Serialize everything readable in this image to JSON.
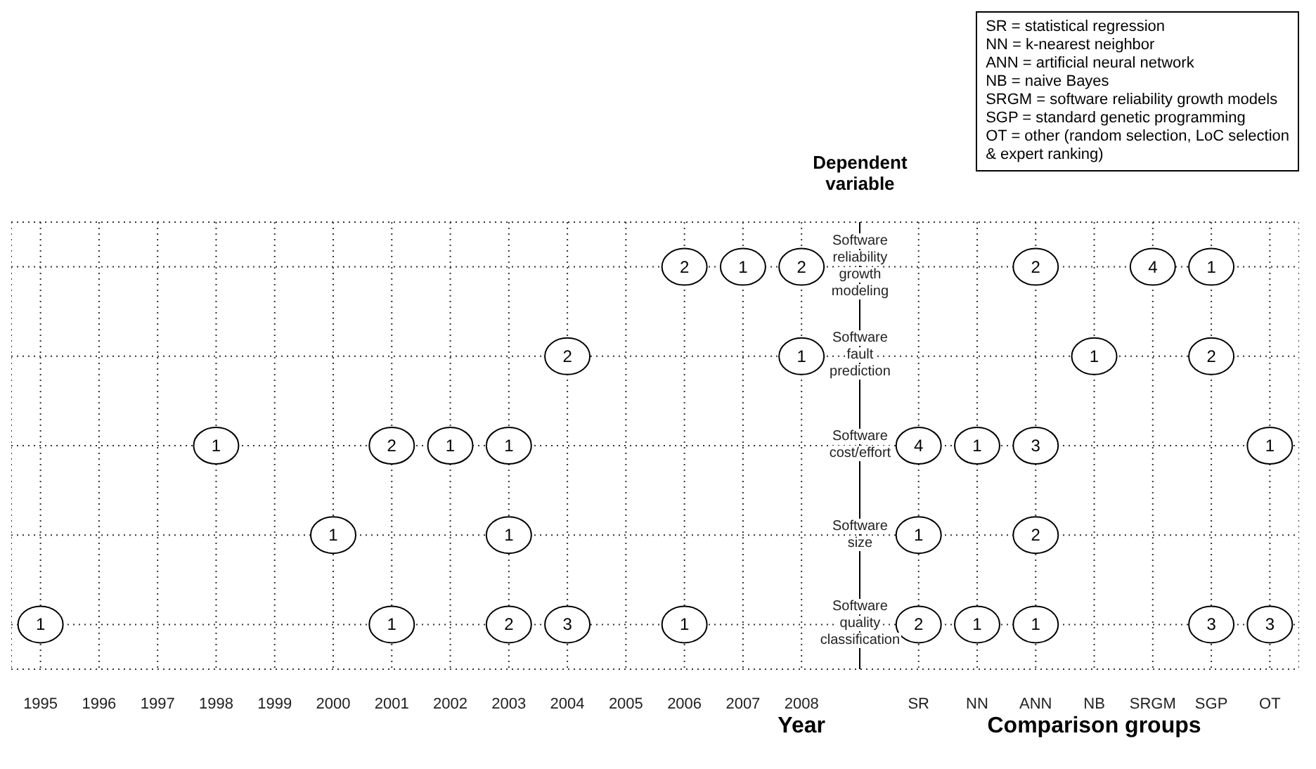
{
  "chart_data": {
    "type": "heatmap",
    "xlabel": "Year",
    "ylabel": "Dependent variable",
    "categories": [
      "1995",
      "1996",
      "1997",
      "1998",
      "1999",
      "2000",
      "2001",
      "2002",
      "2003",
      "2004",
      "2005",
      "2006",
      "2007",
      "2008",
      null,
      "SR",
      "NN",
      "ANN",
      "NB",
      "SRGM",
      "SGP",
      "OT"
    ],
    "y_categories": [
      "Software reliability growth modeling",
      "Software fault prediction",
      "Software cost/effort",
      "Software size",
      "Software quality classification"
    ],
    "cells": [
      [
        null,
        null,
        null,
        null,
        null,
        null,
        null,
        null,
        null,
        null,
        null,
        2,
        1,
        2,
        null,
        null,
        null,
        2,
        null,
        4,
        1,
        null
      ],
      [
        null,
        null,
        null,
        null,
        null,
        null,
        null,
        null,
        null,
        2,
        null,
        null,
        null,
        1,
        null,
        null,
        null,
        null,
        1,
        null,
        2,
        null
      ],
      [
        null,
        null,
        null,
        1,
        null,
        null,
        2,
        1,
        1,
        null,
        null,
        null,
        null,
        null,
        null,
        4,
        1,
        3,
        null,
        null,
        null,
        1
      ],
      [
        null,
        null,
        null,
        null,
        null,
        1,
        null,
        null,
        1,
        null,
        null,
        null,
        null,
        null,
        null,
        1,
        null,
        2,
        null,
        null,
        null,
        null
      ],
      [
        1,
        null,
        null,
        null,
        null,
        null,
        1,
        null,
        2,
        3,
        null,
        1,
        null,
        null,
        null,
        2,
        1,
        1,
        null,
        null,
        3,
        3
      ]
    ],
    "grid": true,
    "data_labels": true,
    "annotations": [
      "Comparison groups",
      "SR = statistical regression",
      "NN = k-nearest neighbor",
      "ANN = artificial neural network",
      "NB = naive Bayes",
      "SRGM = software reliability growth models",
      "SGP = standard genetic programming",
      "OT = other (random selection, LoC selection",
      "& expert ranking)"
    ]
  }
}
